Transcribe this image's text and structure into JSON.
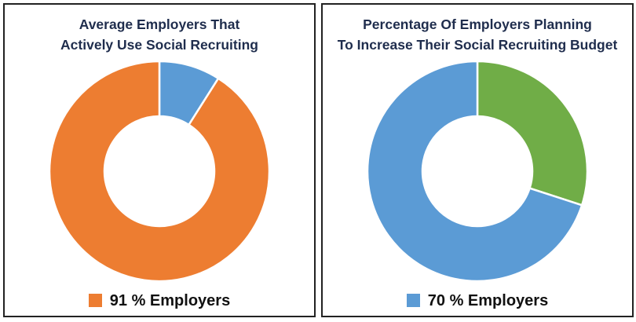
{
  "chart_data": [
    {
      "type": "pie",
      "donut": true,
      "title": [
        "Average Employers That",
        "Actively Use Social Recruiting"
      ],
      "slices": [
        {
          "label": "",
          "value": 9,
          "color": "#5b9bd5"
        },
        {
          "label": "91 % Employers",
          "value": 91,
          "color": "#ed7d31"
        }
      ],
      "legend": {
        "label": "91 % Employers",
        "color": "#ed7d31",
        "placement": "bottom"
      }
    },
    {
      "type": "pie",
      "donut": true,
      "title": [
        "Percentage Of Employers Planning",
        "To Increase Their Social Recruiting Budget"
      ],
      "slices": [
        {
          "label": "",
          "value": 30,
          "color": "#70ad47"
        },
        {
          "label": "70 % Employers",
          "value": 70,
          "color": "#5b9bd5"
        }
      ],
      "legend": {
        "label": "70 % Employers",
        "color": "#5b9bd5",
        "placement": "bottom"
      }
    }
  ]
}
